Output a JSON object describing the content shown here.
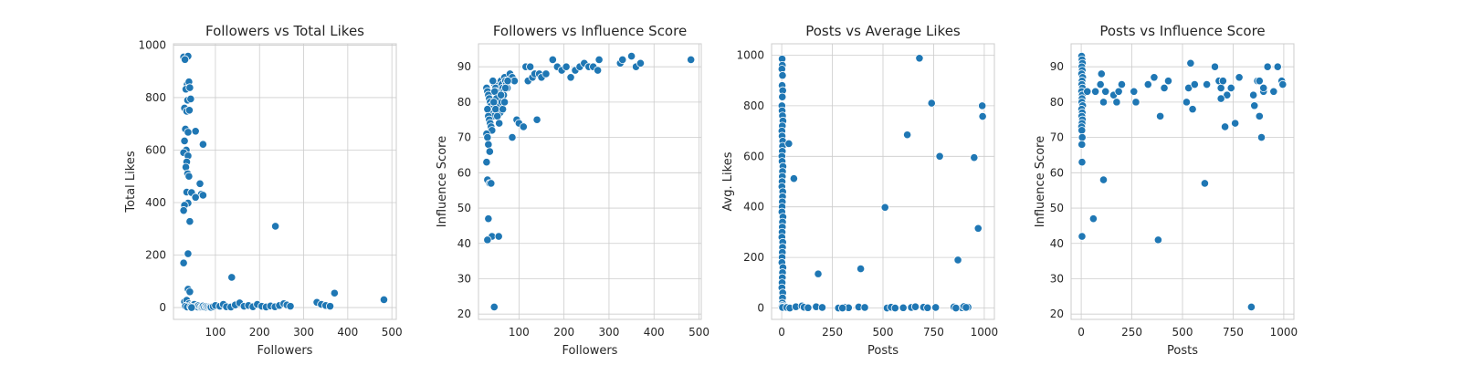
{
  "colors": {
    "point": "#1f77b4",
    "grid": "#cccccc",
    "text": "#262626"
  },
  "chart_data": [
    {
      "type": "scatter",
      "title": "Followers vs Total Likes",
      "xlabel": "Followers",
      "ylabel": "Total Likes",
      "xlim": [
        5,
        510
      ],
      "ylim": [
        -45,
        1005
      ],
      "xticks": [
        100,
        200,
        300,
        400,
        500
      ],
      "yticks": [
        0,
        200,
        400,
        600,
        800,
        1000
      ],
      "grid": true,
      "points": [
        [
          28,
          955
        ],
        [
          38,
          958
        ],
        [
          31,
          945
        ],
        [
          36,
          850
        ],
        [
          40,
          860
        ],
        [
          33,
          832
        ],
        [
          42,
          838
        ],
        [
          37,
          790
        ],
        [
          44,
          795
        ],
        [
          30,
          760
        ],
        [
          35,
          748
        ],
        [
          41,
          752
        ],
        [
          55,
          672
        ],
        [
          32,
          680
        ],
        [
          38,
          668
        ],
        [
          30,
          635
        ],
        [
          72,
          622
        ],
        [
          34,
          600
        ],
        [
          28,
          590
        ],
        [
          38,
          578
        ],
        [
          35,
          555
        ],
        [
          33,
          535
        ],
        [
          37,
          510
        ],
        [
          40,
          500
        ],
        [
          65,
          472
        ],
        [
          35,
          440
        ],
        [
          46,
          438
        ],
        [
          68,
          432
        ],
        [
          72,
          428
        ],
        [
          55,
          420
        ],
        [
          38,
          398
        ],
        [
          30,
          390
        ],
        [
          28,
          370
        ],
        [
          42,
          328
        ],
        [
          236,
          310
        ],
        [
          38,
          205
        ],
        [
          28,
          170
        ],
        [
          137,
          115
        ],
        [
          38,
          70
        ],
        [
          42,
          60
        ],
        [
          370,
          55
        ],
        [
          30,
          22
        ],
        [
          35,
          28
        ],
        [
          40,
          15
        ],
        [
          45,
          10
        ],
        [
          48,
          8
        ],
        [
          50,
          5
        ],
        [
          52,
          12
        ],
        [
          55,
          3
        ],
        [
          58,
          6
        ],
        [
          60,
          2
        ],
        [
          62,
          8
        ],
        [
          65,
          4
        ],
        [
          68,
          1
        ],
        [
          70,
          3
        ],
        [
          72,
          6
        ],
        [
          75,
          2
        ],
        [
          78,
          5
        ],
        [
          80,
          1
        ],
        [
          82,
          4
        ],
        [
          85,
          2
        ],
        [
          88,
          3
        ],
        [
          90,
          1
        ],
        [
          95,
          4
        ],
        [
          100,
          8
        ],
        [
          110,
          5
        ],
        [
          118,
          12
        ],
        [
          125,
          3
        ],
        [
          135,
          2
        ],
        [
          145,
          10
        ],
        [
          155,
          18
        ],
        [
          165,
          5
        ],
        [
          175,
          8
        ],
        [
          185,
          3
        ],
        [
          195,
          12
        ],
        [
          205,
          5
        ],
        [
          215,
          2
        ],
        [
          225,
          6
        ],
        [
          235,
          3
        ],
        [
          245,
          8
        ],
        [
          255,
          15
        ],
        [
          262,
          10
        ],
        [
          270,
          5
        ],
        [
          330,
          20
        ],
        [
          340,
          12
        ],
        [
          350,
          8
        ],
        [
          360,
          5
        ],
        [
          482,
          30
        ],
        [
          32,
          5
        ],
        [
          36,
          2
        ],
        [
          44,
          3
        ],
        [
          46,
          0
        ]
      ]
    },
    {
      "type": "scatter",
      "title": "Followers vs Influence Score",
      "xlabel": "Followers",
      "ylabel": "Influence Score",
      "xlim": [
        10,
        505
      ],
      "ylim": [
        18.5,
        96.5
      ],
      "xticks": [
        100,
        200,
        300,
        400,
        500
      ],
      "yticks": [
        20,
        30,
        40,
        50,
        60,
        70,
        80,
        90
      ],
      "grid": true,
      "points": [
        [
          28,
          84
        ],
        [
          30,
          83
        ],
        [
          32,
          82
        ],
        [
          34,
          81
        ],
        [
          36,
          80
        ],
        [
          38,
          79
        ],
        [
          40,
          78
        ],
        [
          42,
          77
        ],
        [
          44,
          76
        ],
        [
          46,
          85
        ],
        [
          48,
          84
        ],
        [
          50,
          83
        ],
        [
          52,
          82
        ],
        [
          54,
          81
        ],
        [
          56,
          80
        ],
        [
          58,
          79
        ],
        [
          60,
          86
        ],
        [
          62,
          85
        ],
        [
          64,
          84
        ],
        [
          66,
          83
        ],
        [
          68,
          87
        ],
        [
          70,
          86
        ],
        [
          72,
          85
        ],
        [
          74,
          84
        ],
        [
          30,
          78
        ],
        [
          32,
          76
        ],
        [
          34,
          75
        ],
        [
          36,
          74
        ],
        [
          38,
          73
        ],
        [
          40,
          72
        ],
        [
          28,
          71
        ],
        [
          30,
          70
        ],
        [
          32,
          68
        ],
        [
          35,
          66
        ],
        [
          28,
          63
        ],
        [
          30,
          58
        ],
        [
          35,
          57
        ],
        [
          38,
          57
        ],
        [
          32,
          47
        ],
        [
          40,
          42
        ],
        [
          30,
          41
        ],
        [
          55,
          42
        ],
        [
          45,
          22
        ],
        [
          80,
          88
        ],
        [
          85,
          87
        ],
        [
          90,
          86
        ],
        [
          95,
          75
        ],
        [
          85,
          70
        ],
        [
          100,
          74
        ],
        [
          110,
          73
        ],
        [
          115,
          90
        ],
        [
          125,
          90
        ],
        [
          120,
          86
        ],
        [
          130,
          87
        ],
        [
          135,
          88
        ],
        [
          140,
          75
        ],
        [
          145,
          88
        ],
        [
          150,
          87
        ],
        [
          160,
          88
        ],
        [
          175,
          92
        ],
        [
          185,
          90
        ],
        [
          195,
          89
        ],
        [
          205,
          90
        ],
        [
          215,
          87
        ],
        [
          225,
          89
        ],
        [
          235,
          90
        ],
        [
          245,
          91
        ],
        [
          255,
          90
        ],
        [
          265,
          90
        ],
        [
          275,
          89
        ],
        [
          278,
          92
        ],
        [
          325,
          91
        ],
        [
          330,
          92
        ],
        [
          350,
          93
        ],
        [
          360,
          90
        ],
        [
          370,
          91
        ],
        [
          482,
          92
        ],
        [
          42,
          86
        ],
        [
          46,
          83
        ],
        [
          50,
          81
        ],
        [
          55,
          79
        ],
        [
          58,
          77
        ],
        [
          62,
          80
        ],
        [
          66,
          82
        ],
        [
          70,
          84
        ],
        [
          75,
          86
        ],
        [
          44,
          80
        ],
        [
          48,
          78
        ],
        [
          52,
          76
        ],
        [
          56,
          74
        ],
        [
          60,
          82
        ],
        [
          64,
          78
        ],
        [
          68,
          80
        ]
      ]
    },
    {
      "type": "scatter",
      "title": "Posts vs Average Likes",
      "xlabel": "Posts",
      "ylabel": "Avg. Likes",
      "xlim": [
        -50,
        1050
      ],
      "ylim": [
        -45,
        1045
      ],
      "xticks": [
        0,
        250,
        500,
        750,
        1000
      ],
      "yticks": [
        0,
        200,
        400,
        600,
        800,
        1000
      ],
      "grid": true,
      "points": [
        [
          2,
          985
        ],
        [
          3,
          960
        ],
        [
          1,
          945
        ],
        [
          4,
          920
        ],
        [
          2,
          880
        ],
        [
          5,
          860
        ],
        [
          3,
          835
        ],
        [
          1,
          800
        ],
        [
          2,
          780
        ],
        [
          4,
          760
        ],
        [
          6,
          740
        ],
        [
          3,
          720
        ],
        [
          1,
          700
        ],
        [
          2,
          680
        ],
        [
          5,
          660
        ],
        [
          4,
          640
        ],
        [
          3,
          620
        ],
        [
          1,
          600
        ],
        [
          2,
          580
        ],
        [
          6,
          560
        ],
        [
          4,
          540
        ],
        [
          3,
          520
        ],
        [
          2,
          500
        ],
        [
          1,
          480
        ],
        [
          5,
          460
        ],
        [
          4,
          440
        ],
        [
          3,
          420
        ],
        [
          2,
          400
        ],
        [
          1,
          380
        ],
        [
          6,
          360
        ],
        [
          4,
          340
        ],
        [
          3,
          320
        ],
        [
          2,
          300
        ],
        [
          1,
          280
        ],
        [
          5,
          260
        ],
        [
          4,
          240
        ],
        [
          3,
          220
        ],
        [
          2,
          200
        ],
        [
          1,
          180
        ],
        [
          6,
          160
        ],
        [
          4,
          140
        ],
        [
          3,
          120
        ],
        [
          2,
          100
        ],
        [
          1,
          80
        ],
        [
          5,
          60
        ],
        [
          4,
          40
        ],
        [
          3,
          20
        ],
        [
          2,
          10
        ],
        [
          1,
          5
        ],
        [
          4,
          2
        ],
        [
          35,
          650
        ],
        [
          60,
          512
        ],
        [
          25,
          2
        ],
        [
          40,
          0
        ],
        [
          70,
          5
        ],
        [
          100,
          8
        ],
        [
          110,
          3
        ],
        [
          130,
          1
        ],
        [
          170,
          5
        ],
        [
          180,
          135
        ],
        [
          200,
          2
        ],
        [
          280,
          0
        ],
        [
          310,
          3
        ],
        [
          330,
          1
        ],
        [
          380,
          4
        ],
        [
          390,
          155
        ],
        [
          410,
          2
        ],
        [
          510,
          398
        ],
        [
          520,
          0
        ],
        [
          540,
          3
        ],
        [
          600,
          1
        ],
        [
          620,
          685
        ],
        [
          640,
          2
        ],
        [
          660,
          5
        ],
        [
          680,
          988
        ],
        [
          700,
          3
        ],
        [
          720,
          1
        ],
        [
          740,
          810
        ],
        [
          760,
          2
        ],
        [
          780,
          600
        ],
        [
          850,
          4
        ],
        [
          870,
          190
        ],
        [
          890,
          1
        ],
        [
          900,
          6
        ],
        [
          920,
          3
        ],
        [
          950,
          595
        ],
        [
          970,
          315
        ],
        [
          990,
          800
        ],
        [
          992,
          758
        ],
        [
          860,
          0
        ],
        [
          910,
          2
        ],
        [
          560,
          0
        ],
        [
          300,
          0
        ]
      ]
    },
    {
      "type": "scatter",
      "title": "Posts vs Influence Score",
      "xlabel": "Posts",
      "ylabel": "Influence Score",
      "xlim": [
        -50,
        1050
      ],
      "ylim": [
        18.5,
        96.5
      ],
      "xticks": [
        0,
        250,
        500,
        750,
        1000
      ],
      "yticks": [
        20,
        30,
        40,
        50,
        60,
        70,
        80,
        90
      ],
      "grid": true,
      "points": [
        [
          2,
          93
        ],
        [
          4,
          92
        ],
        [
          6,
          91
        ],
        [
          3,
          90
        ],
        [
          5,
          89
        ],
        [
          2,
          88
        ],
        [
          7,
          87
        ],
        [
          4,
          86
        ],
        [
          3,
          85
        ],
        [
          6,
          84
        ],
        [
          2,
          83
        ],
        [
          5,
          82
        ],
        [
          4,
          81
        ],
        [
          3,
          80
        ],
        [
          7,
          79
        ],
        [
          2,
          78
        ],
        [
          5,
          77
        ],
        [
          3,
          76
        ],
        [
          6,
          75
        ],
        [
          4,
          74
        ],
        [
          2,
          73
        ],
        [
          3,
          72
        ],
        [
          5,
          70
        ],
        [
          3,
          68
        ],
        [
          4,
          63
        ],
        [
          2,
          42
        ],
        [
          4,
          42
        ],
        [
          30,
          83
        ],
        [
          60,
          47
        ],
        [
          70,
          83
        ],
        [
          100,
          88
        ],
        [
          95,
          85
        ],
        [
          110,
          80
        ],
        [
          120,
          83
        ],
        [
          110,
          58
        ],
        [
          160,
          82
        ],
        [
          175,
          80
        ],
        [
          185,
          83
        ],
        [
          200,
          85
        ],
        [
          260,
          83
        ],
        [
          270,
          80
        ],
        [
          330,
          85
        ],
        [
          360,
          87
        ],
        [
          380,
          41
        ],
        [
          390,
          76
        ],
        [
          410,
          84
        ],
        [
          430,
          86
        ],
        [
          520,
          80
        ],
        [
          530,
          84
        ],
        [
          540,
          91
        ],
        [
          550,
          78
        ],
        [
          560,
          85
        ],
        [
          610,
          57
        ],
        [
          620,
          85
        ],
        [
          660,
          90
        ],
        [
          680,
          86
        ],
        [
          690,
          84
        ],
        [
          700,
          86
        ],
        [
          710,
          73
        ],
        [
          720,
          82
        ],
        [
          740,
          84
        ],
        [
          760,
          74
        ],
        [
          780,
          87
        ],
        [
          840,
          22
        ],
        [
          850,
          82
        ],
        [
          855,
          79
        ],
        [
          870,
          86
        ],
        [
          880,
          76
        ],
        [
          890,
          70
        ],
        [
          900,
          83
        ],
        [
          920,
          90
        ],
        [
          950,
          83
        ],
        [
          970,
          90
        ],
        [
          990,
          86
        ],
        [
          995,
          85
        ],
        [
          880,
          86
        ],
        [
          900,
          84
        ],
        [
          690,
          81
        ]
      ]
    }
  ]
}
